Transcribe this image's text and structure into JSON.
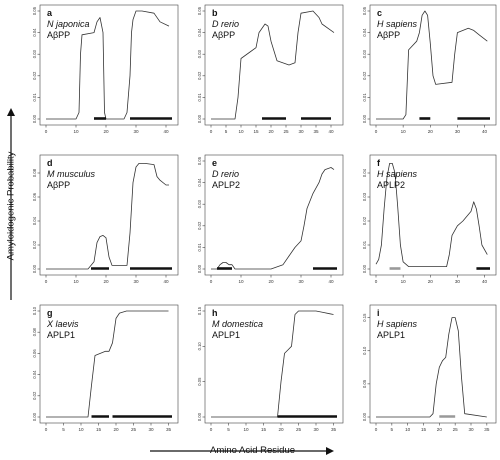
{
  "figure": {
    "y_axis_label": "Amyloidogenic Probability",
    "x_axis_label": "Amino Acid Residue"
  },
  "chart_data": [
    {
      "type": "line",
      "letter": "a",
      "species": "N japonica",
      "protein": "AβPP",
      "xlim": [
        0,
        42
      ],
      "ylim": [
        0,
        0.05
      ],
      "xticks": [
        "0",
        "10",
        "20",
        "30",
        "40"
      ],
      "yticks": [
        "0.00",
        "0.01",
        "0.02",
        "0.03",
        "0.04",
        "0.05"
      ],
      "x": [
        0,
        10,
        11,
        11.5,
        12,
        16,
        17,
        18,
        19,
        19.5,
        20,
        26,
        27,
        28,
        28.5,
        29,
        30,
        32,
        36,
        38,
        41
      ],
      "y": [
        0,
        0,
        0.003,
        0.03,
        0.039,
        0.04,
        0.045,
        0.047,
        0.04,
        0.003,
        0,
        0,
        0.003,
        0.02,
        0.04,
        0.046,
        0.05,
        0.05,
        0.049,
        0.045,
        0.043
      ],
      "bars": [
        [
          16,
          20
        ],
        [
          28,
          42
        ]
      ],
      "bar_color": "#111111"
    },
    {
      "type": "line",
      "letter": "b",
      "species": "D rerio",
      "protein": "AβPP",
      "xlim": [
        0,
        42
      ],
      "ylim": [
        0,
        0.05
      ],
      "xticks": [
        "0",
        "5",
        "10",
        "15",
        "20",
        "25",
        "30",
        "35",
        "40"
      ],
      "yticks": [
        "0.00",
        "0.01",
        "0.02",
        "0.03",
        "0.04",
        "0.05"
      ],
      "x": [
        0,
        8,
        9,
        10,
        13,
        15,
        16,
        18,
        19,
        20,
        22,
        26,
        28,
        29,
        30,
        34,
        36,
        37,
        40,
        41
      ],
      "y": [
        0,
        0,
        0.01,
        0.028,
        0.031,
        0.033,
        0.04,
        0.044,
        0.043,
        0.036,
        0.027,
        0.025,
        0.026,
        0.04,
        0.049,
        0.05,
        0.047,
        0.044,
        0.041,
        0.04
      ],
      "bars": [
        [
          17,
          25
        ],
        [
          30,
          40
        ]
      ],
      "bar_color": "#111111"
    },
    {
      "type": "line",
      "letter": "c",
      "species": "H sapiens",
      "protein": "AβPP",
      "xlim": [
        0,
        42
      ],
      "ylim": [
        0,
        0.05
      ],
      "xticks": [
        "0",
        "10",
        "20",
        "30",
        "40"
      ],
      "yticks": [
        "0.00",
        "0.01",
        "0.02",
        "0.03",
        "0.04",
        "0.05"
      ],
      "x": [
        0,
        10,
        11,
        12,
        15,
        16,
        17,
        18,
        19,
        20,
        21,
        22,
        28,
        29,
        30,
        34,
        36,
        38,
        40,
        41
      ],
      "y": [
        0,
        0,
        0.002,
        0.032,
        0.036,
        0.04,
        0.048,
        0.05,
        0.048,
        0.035,
        0.02,
        0.016,
        0.017,
        0.03,
        0.04,
        0.042,
        0.041,
        0.039,
        0.037,
        0.036
      ],
      "bars": [
        [
          16,
          20
        ],
        [
          30,
          42
        ]
      ],
      "bar_color": "#111111"
    },
    {
      "type": "line",
      "letter": "d",
      "species": "M musculus",
      "protein": "AβPP",
      "xlim": [
        0,
        42
      ],
      "ylim": [
        0,
        0.09
      ],
      "xticks": [
        "0",
        "10",
        "20",
        "30",
        "40"
      ],
      "yticks": [
        "0.00",
        "0.02",
        "0.04",
        "0.06",
        "0.08"
      ],
      "x": [
        0,
        14,
        16,
        17,
        18,
        19,
        20,
        21,
        22,
        27,
        28,
        29,
        30,
        31,
        33,
        36,
        37,
        38,
        40,
        41
      ],
      "y": [
        0,
        0,
        0.006,
        0.022,
        0.027,
        0.028,
        0.026,
        0.01,
        0.003,
        0.003,
        0.03,
        0.072,
        0.085,
        0.088,
        0.088,
        0.087,
        0.077,
        0.074,
        0.07,
        0.07
      ],
      "bars": [
        [
          15,
          21
        ],
        [
          28,
          42
        ]
      ],
      "bar_color": "#111111"
    },
    {
      "type": "line",
      "letter": "e",
      "species": "D rerio",
      "protein": "APLP2",
      "xlim": [
        0,
        42
      ],
      "ylim": [
        0,
        0.05
      ],
      "xticks": [
        "0",
        "10",
        "20",
        "30",
        "40"
      ],
      "yticks": [
        "0.00",
        "0.01",
        "0.02",
        "0.03",
        "0.04",
        "0.05"
      ],
      "x": [
        0,
        2,
        3,
        4,
        5,
        6,
        7,
        8,
        20,
        24,
        26,
        28,
        30,
        31,
        32,
        34,
        36,
        37,
        38,
        40,
        41
      ],
      "y": [
        0,
        0,
        0.002,
        0.003,
        0.003,
        0.002,
        0.002,
        0,
        0,
        0.002,
        0.006,
        0.01,
        0.013,
        0.02,
        0.028,
        0.035,
        0.04,
        0.044,
        0.046,
        0.047,
        0.046
      ],
      "bars": [
        [
          2,
          7
        ],
        [
          34,
          42
        ]
      ],
      "bar_color": "#111111"
    },
    {
      "type": "line",
      "letter": "f",
      "species": "H sapiens",
      "protein": "APLP2",
      "xlim": [
        0,
        42
      ],
      "ylim": [
        0,
        0.045
      ],
      "xticks": [
        "0",
        "10",
        "20",
        "30",
        "40"
      ],
      "yticks": [
        "0.00",
        "0.01",
        "0.02",
        "0.03",
        "0.04"
      ],
      "x": [
        0,
        1,
        2,
        3,
        4,
        5,
        6,
        7,
        8,
        9,
        10,
        12,
        26,
        27,
        28,
        30,
        32,
        35,
        36,
        37,
        38,
        39,
        41
      ],
      "y": [
        0.002,
        0.004,
        0.01,
        0.025,
        0.038,
        0.044,
        0.044,
        0.04,
        0.026,
        0.01,
        0.003,
        0.001,
        0.001,
        0.006,
        0.014,
        0.018,
        0.02,
        0.024,
        0.028,
        0.025,
        0.018,
        0.01,
        0.006
      ],
      "bars": [
        [
          5,
          9
        ],
        [
          37,
          42
        ]
      ],
      "bar_colors": [
        "#999999",
        "#111111"
      ]
    },
    {
      "type": "line",
      "letter": "g",
      "species": "X laevis",
      "protein": "APLP1",
      "xlim": [
        0,
        36
      ],
      "ylim": [
        0,
        0.1
      ],
      "xticks": [
        "0",
        "5",
        "10",
        "15",
        "20",
        "25",
        "30",
        "35"
      ],
      "yticks": [
        "0.00",
        "0.02",
        "0.04",
        "0.06",
        "0.08",
        "0.10"
      ],
      "x": [
        0,
        12,
        13,
        14,
        17,
        18,
        19,
        20,
        21,
        23,
        26,
        30,
        33,
        35
      ],
      "y": [
        0,
        0,
        0.03,
        0.058,
        0.062,
        0.062,
        0.07,
        0.093,
        0.098,
        0.1,
        0.1,
        0.1,
        0.1,
        0.1
      ],
      "bars": [
        [
          13,
          18
        ],
        [
          19,
          36
        ]
      ],
      "bar_color": "#111111"
    },
    {
      "type": "line",
      "letter": "h",
      "species": "M domestica",
      "protein": "APLP1",
      "xlim": [
        0,
        36
      ],
      "ylim": [
        0,
        0.15
      ],
      "xticks": [
        "0",
        "5",
        "10",
        "15",
        "20",
        "25",
        "30",
        "35"
      ],
      "yticks": [
        "0.00",
        "0.05",
        "0.10",
        "0.15"
      ],
      "x": [
        0,
        19,
        20,
        21,
        22,
        23,
        24,
        25,
        30,
        32,
        34,
        35
      ],
      "y": [
        0,
        0,
        0.05,
        0.09,
        0.095,
        0.1,
        0.145,
        0.15,
        0.15,
        0.148,
        0.146,
        0.145
      ],
      "bars": [
        [
          19,
          36
        ]
      ],
      "bar_color": "#111111"
    },
    {
      "type": "line",
      "letter": "i",
      "species": "H sapiens",
      "protein": "APLP1",
      "xlim": [
        0,
        36
      ],
      "ylim": [
        0,
        0.16
      ],
      "xticks": [
        "0",
        "5",
        "10",
        "15",
        "20",
        "25",
        "30",
        "35"
      ],
      "yticks": [
        "0.00",
        "0.05",
        "0.10",
        "0.15"
      ],
      "x": [
        0,
        17,
        18,
        19,
        20,
        21,
        22,
        23,
        24,
        25,
        26,
        27,
        28,
        35
      ],
      "y": [
        0,
        0,
        0.005,
        0.05,
        0.075,
        0.085,
        0.09,
        0.125,
        0.15,
        0.15,
        0.13,
        0.06,
        0.005,
        0
      ],
      "bars": [
        [
          20,
          25
        ]
      ],
      "bar_color": "#999999"
    }
  ]
}
